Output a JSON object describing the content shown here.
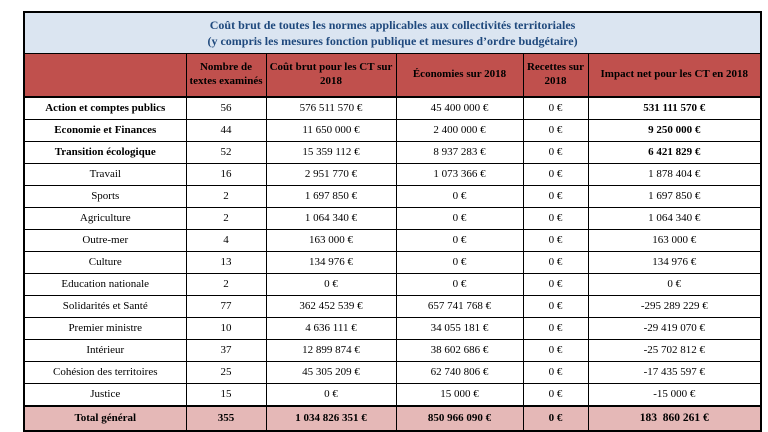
{
  "table": {
    "title": {
      "line1": "Coût brut de toutes les normes applicables aux collectivités territoriales",
      "line2": "(y compris les mesures fonction publique et mesures d’ordre budgétaire)"
    },
    "columns": [
      {
        "label": ""
      },
      {
        "label": "Nombre de textes examinés"
      },
      {
        "label": "Coût brut pour les CT sur 2018"
      },
      {
        "label": "Économies sur 2018"
      },
      {
        "label": "Recettes sur 2018"
      },
      {
        "label": "Impact net pour les CT en 2018"
      }
    ],
    "rows": [
      {
        "name": "Action et comptes publics",
        "emphasized": true,
        "values": [
          "56",
          "576 511 570 €",
          "45 400 000 €",
          "0 €",
          "531 111 570 €"
        ]
      },
      {
        "name": "Economie et Finances",
        "emphasized": true,
        "values": [
          "44",
          "11 650 000 €",
          "2 400 000 €",
          "0 €",
          "9 250 000 €"
        ]
      },
      {
        "name": "Transition écologique",
        "emphasized": true,
        "values": [
          "52",
          "15 359 112 €",
          "8 937 283 €",
          "0 €",
          "6 421 829 €"
        ]
      },
      {
        "name": "Travail",
        "emphasized": false,
        "values": [
          "16",
          "2 951 770 €",
          "1 073 366 €",
          "0 €",
          "1 878 404 €"
        ]
      },
      {
        "name": "Sports",
        "emphasized": false,
        "values": [
          "2",
          "1 697 850 €",
          "0 €",
          "0 €",
          "1 697 850 €"
        ]
      },
      {
        "name": "Agriculture",
        "emphasized": false,
        "values": [
          "2",
          "1 064 340 €",
          "0 €",
          "0 €",
          "1 064 340 €"
        ]
      },
      {
        "name": "Outre-mer",
        "emphasized": false,
        "values": [
          "4",
          "163 000 €",
          "0 €",
          "0 €",
          "163 000 €"
        ]
      },
      {
        "name": "Culture",
        "emphasized": false,
        "values": [
          "13",
          "134 976 €",
          "0 €",
          "0 €",
          "134 976 €"
        ]
      },
      {
        "name": "Education nationale",
        "emphasized": false,
        "values": [
          "2",
          "0 €",
          "0 €",
          "0 €",
          "0 €"
        ]
      },
      {
        "name": "Solidarités et Santé",
        "emphasized": false,
        "values": [
          "77",
          "362 452 539 €",
          "657 741 768 €",
          "0 €",
          "-295 289 229 €"
        ]
      },
      {
        "name": "Premier ministre",
        "emphasized": false,
        "values": [
          "10",
          "4 636 111 €",
          "34 055 181 €",
          "0 €",
          "-29 419 070 €"
        ]
      },
      {
        "name": "Intérieur",
        "emphasized": false,
        "values": [
          "37",
          "12 899 874 €",
          "38 602 686 €",
          "0 €",
          "-25 702 812 €"
        ]
      },
      {
        "name": "Cohésion des territoires",
        "emphasized": false,
        "values": [
          "25",
          "45 305 209 €",
          "62 740 806 €",
          "0 €",
          "-17 435 597 €"
        ]
      },
      {
        "name": "Justice",
        "emphasized": false,
        "values": [
          "15",
          "0 €",
          "15 000 €",
          "0 €",
          "-15 000 €"
        ]
      }
    ],
    "total_row": {
      "name": "Total général",
      "values": [
        "355",
        "1 034 826 351 €",
        "850 966 090 €",
        "0 €",
        "183  860 261 €"
      ]
    }
  },
  "colors": {
    "page_bg": "#ffffff",
    "title_bg": "#dbe5f1",
    "title_text": "#1f497d",
    "header_bg": "#c0504d",
    "total_bg": "#e5b8b7",
    "border": "#000000",
    "text": "#000000"
  }
}
